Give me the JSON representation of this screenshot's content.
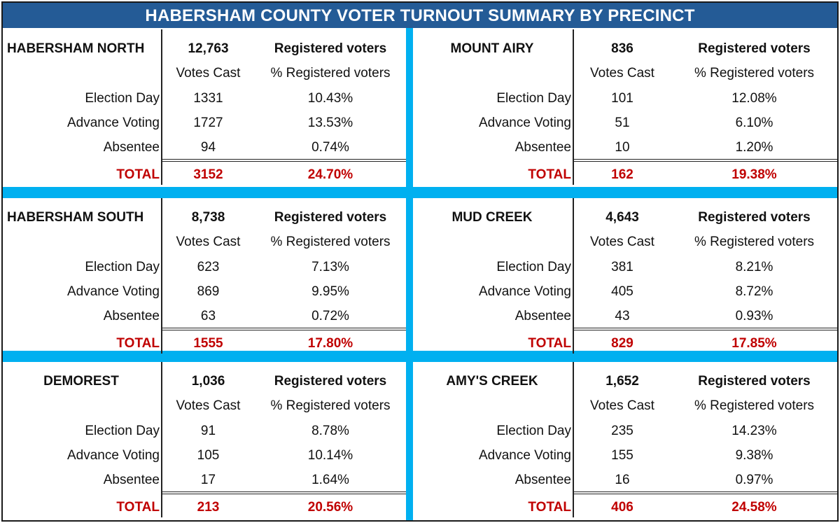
{
  "title": "HABERSHAM COUNTY VOTER TURNOUT SUMMARY BY PRECINCT",
  "colors": {
    "title_bg": "#245b96",
    "separator": "#00b0f0",
    "total_text": "#c00000"
  },
  "labels": {
    "registered_voters": "Registered voters",
    "votes_cast": "Votes Cast",
    "pct_registered": "% Registered voters",
    "election_day": "Election Day",
    "advance_voting": "Advance Voting",
    "absentee": "Absentee",
    "total": "TOTAL"
  },
  "precincts": [
    {
      "name": "HABERSHAM NORTH",
      "registered": "12,763",
      "election_day": {
        "votes": "1331",
        "pct": "10.43%"
      },
      "advance_voting": {
        "votes": "1727",
        "pct": "13.53%"
      },
      "absentee": {
        "votes": "94",
        "pct": "0.74%"
      },
      "total": {
        "votes": "3152",
        "pct": "24.70%"
      }
    },
    {
      "name": "MOUNT AIRY",
      "registered": "836",
      "election_day": {
        "votes": "101",
        "pct": "12.08%"
      },
      "advance_voting": {
        "votes": "51",
        "pct": "6.10%"
      },
      "absentee": {
        "votes": "10",
        "pct": "1.20%"
      },
      "total": {
        "votes": "162",
        "pct": "19.38%"
      }
    },
    {
      "name": "HABERSHAM SOUTH",
      "registered": "8,738",
      "election_day": {
        "votes": "623",
        "pct": "7.13%"
      },
      "advance_voting": {
        "votes": "869",
        "pct": "9.95%"
      },
      "absentee": {
        "votes": "63",
        "pct": "0.72%"
      },
      "total": {
        "votes": "1555",
        "pct": "17.80%"
      }
    },
    {
      "name": "MUD CREEK",
      "registered": "4,643",
      "election_day": {
        "votes": "381",
        "pct": "8.21%"
      },
      "advance_voting": {
        "votes": "405",
        "pct": "8.72%"
      },
      "absentee": {
        "votes": "43",
        "pct": "0.93%"
      },
      "total": {
        "votes": "829",
        "pct": "17.85%"
      }
    },
    {
      "name": "DEMOREST",
      "registered": "1,036",
      "election_day": {
        "votes": "91",
        "pct": "8.78%"
      },
      "advance_voting": {
        "votes": "105",
        "pct": "10.14%"
      },
      "absentee": {
        "votes": "17",
        "pct": "1.64%"
      },
      "total": {
        "votes": "213",
        "pct": "20.56%"
      }
    },
    {
      "name": "AMY'S CREEK",
      "registered": "1,652",
      "election_day": {
        "votes": "235",
        "pct": "14.23%"
      },
      "advance_voting": {
        "votes": "155",
        "pct": "9.38%"
      },
      "absentee": {
        "votes": "16",
        "pct": "0.97%"
      },
      "total": {
        "votes": "406",
        "pct": "24.58%"
      }
    }
  ]
}
